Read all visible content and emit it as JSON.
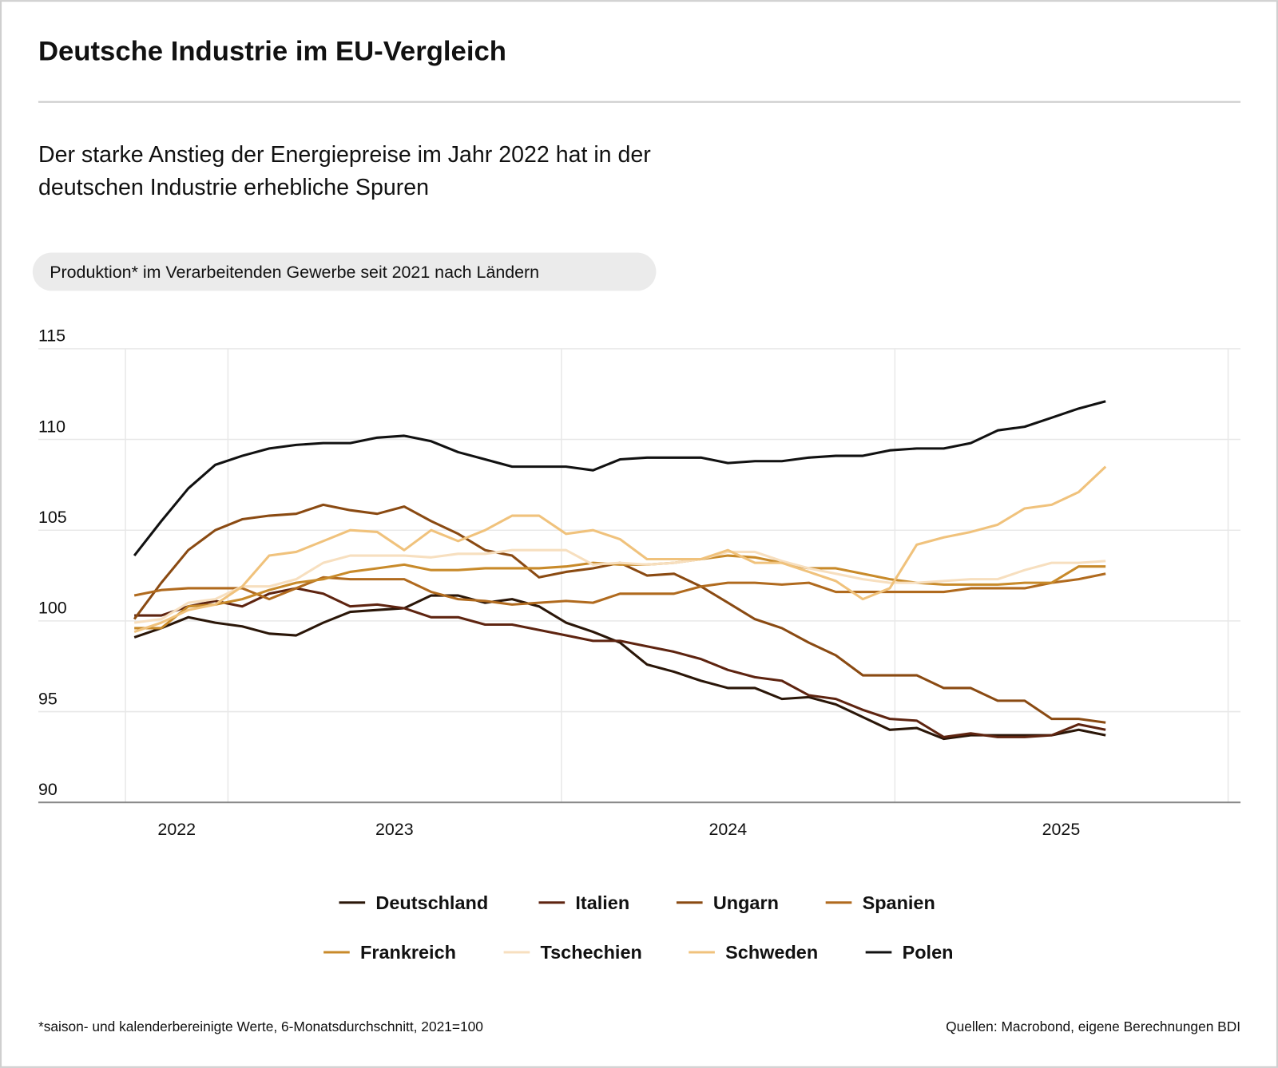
{
  "chart_data": {
    "type": "line",
    "title": "Deutsche Industrie im EU-Vergleich",
    "subtitle": [
      "Der starke Anstieg der Energiepreise im Jahr 2022 hat in der",
      "deutschen Industrie erhebliche Spuren"
    ],
    "chart_label": "Produktion* im Verarbeitenden Gewerbe seit 2021 nach Ländern",
    "footnote": "*saison- und kalenderbereinigte Werte, 6-Monatsdurchschnitt, 2021=100",
    "source": "Quellen: Macrobond, eigene Berechnungen BDI",
    "x": [
      0,
      1,
      2,
      3,
      4,
      5,
      6,
      7,
      8,
      9,
      10,
      11,
      12,
      13,
      14,
      15,
      16,
      17,
      18,
      19,
      20,
      21,
      22,
      23,
      24,
      25,
      26,
      27,
      28,
      29,
      30,
      31,
      32,
      33,
      34,
      35,
      36
    ],
    "xlim": [
      -3.56,
      41
    ],
    "xticks": [
      {
        "value": 1.57,
        "label": "2022"
      },
      {
        "value": 9.64,
        "label": "2023"
      },
      {
        "value": 22,
        "label": "2024"
      },
      {
        "value": 34.35,
        "label": "2025"
      }
    ],
    "xgrid": [
      -0.33,
      3.47,
      15.83,
      28.19,
      40.54
    ],
    "ylim": [
      90,
      115
    ],
    "yticks": [
      90,
      95,
      100,
      105,
      110,
      115
    ],
    "grid": true,
    "series": [
      {
        "name": "Deutschland",
        "color": "#2a1608",
        "values": [
          99.1,
          99.6,
          100.2,
          99.9,
          99.7,
          99.3,
          99.2,
          99.9,
          100.5,
          100.6,
          100.7,
          101.4,
          101.4,
          101.0,
          101.2,
          100.8,
          99.9,
          99.4,
          98.8,
          97.6,
          97.2,
          96.7,
          96.3,
          96.3,
          95.7,
          95.8,
          95.4,
          94.7,
          94.0,
          94.1,
          93.5,
          93.7,
          93.7,
          93.7,
          93.7,
          94.0,
          93.7
        ]
      },
      {
        "name": "Italien",
        "color": "#5e2410",
        "values": [
          100.3,
          100.3,
          100.8,
          101.1,
          100.8,
          101.5,
          101.8,
          101.5,
          100.8,
          100.9,
          100.7,
          100.2,
          100.2,
          99.8,
          99.8,
          99.5,
          99.2,
          98.9,
          98.9,
          98.6,
          98.3,
          97.9,
          97.3,
          96.9,
          96.7,
          95.9,
          95.7,
          95.1,
          94.6,
          94.5,
          93.6,
          93.8,
          93.6,
          93.6,
          93.7,
          94.3,
          94.0
        ]
      },
      {
        "name": "Ungarn",
        "color": "#8a4a12",
        "values": [
          100.1,
          102.1,
          103.9,
          105.0,
          105.6,
          105.8,
          105.9,
          106.4,
          106.1,
          105.9,
          106.3,
          105.5,
          104.8,
          103.9,
          103.6,
          102.4,
          102.7,
          102.9,
          103.2,
          102.5,
          102.6,
          101.9,
          101.0,
          100.1,
          99.6,
          98.8,
          98.1,
          97.0,
          97.0,
          97.0,
          96.3,
          96.3,
          95.6,
          95.6,
          94.6,
          94.6,
          94.4
        ]
      },
      {
        "name": "Spanien",
        "color": "#b06a1e",
        "values": [
          101.4,
          101.7,
          101.8,
          101.8,
          101.8,
          101.2,
          101.8,
          102.4,
          102.3,
          102.3,
          102.3,
          101.6,
          101.2,
          101.1,
          100.9,
          101.0,
          101.1,
          101.0,
          101.5,
          101.5,
          101.5,
          101.9,
          102.1,
          102.1,
          102.0,
          102.1,
          101.6,
          101.6,
          101.6,
          101.6,
          101.6,
          101.8,
          101.8,
          101.8,
          102.1,
          102.3,
          102.6
        ]
      },
      {
        "name": "Frankreich",
        "color": "#c88a2a",
        "values": [
          99.6,
          99.6,
          100.8,
          100.9,
          101.2,
          101.7,
          102.1,
          102.3,
          102.7,
          102.9,
          103.1,
          102.8,
          102.8,
          102.9,
          102.9,
          102.9,
          103.0,
          103.2,
          103.1,
          103.1,
          103.2,
          103.4,
          103.6,
          103.5,
          103.2,
          102.9,
          102.9,
          102.6,
          102.3,
          102.1,
          102.0,
          102.0,
          102.0,
          102.1,
          102.1,
          103.0,
          103.0
        ]
      },
      {
        "name": "Tschechien",
        "color": "#f7dfbf",
        "values": [
          99.9,
          100.1,
          101.0,
          101.2,
          101.9,
          101.9,
          102.3,
          103.2,
          103.6,
          103.6,
          103.6,
          103.5,
          103.7,
          103.7,
          103.9,
          103.9,
          103.9,
          103.1,
          103.2,
          103.1,
          103.2,
          103.4,
          103.8,
          103.8,
          103.3,
          102.9,
          102.6,
          102.3,
          102.1,
          102.1,
          102.2,
          102.3,
          102.3,
          102.8,
          103.2,
          103.2,
          103.3
        ]
      },
      {
        "name": "Schweden",
        "color": "#f0c27c",
        "values": [
          99.4,
          99.9,
          100.6,
          100.9,
          101.9,
          103.6,
          103.8,
          104.4,
          105.0,
          104.9,
          103.9,
          105.0,
          104.4,
          105.0,
          105.8,
          105.8,
          104.8,
          105.0,
          104.5,
          103.4,
          103.4,
          103.4,
          103.9,
          103.2,
          103.2,
          102.7,
          102.2,
          101.2,
          101.8,
          104.2,
          104.6,
          104.9,
          105.3,
          106.2,
          106.4,
          107.1,
          108.5
        ]
      },
      {
        "name": "Polen",
        "color": "#111111",
        "values": [
          103.6,
          105.5,
          107.3,
          108.6,
          109.1,
          109.5,
          109.7,
          109.8,
          109.8,
          110.1,
          110.2,
          109.9,
          109.3,
          108.9,
          108.5,
          108.5,
          108.5,
          108.3,
          108.9,
          109.0,
          109.0,
          109.0,
          108.7,
          108.8,
          108.8,
          109.0,
          109.1,
          109.1,
          109.4,
          109.5,
          109.5,
          109.8,
          110.5,
          110.7,
          111.2,
          111.7,
          112.1
        ]
      }
    ]
  }
}
